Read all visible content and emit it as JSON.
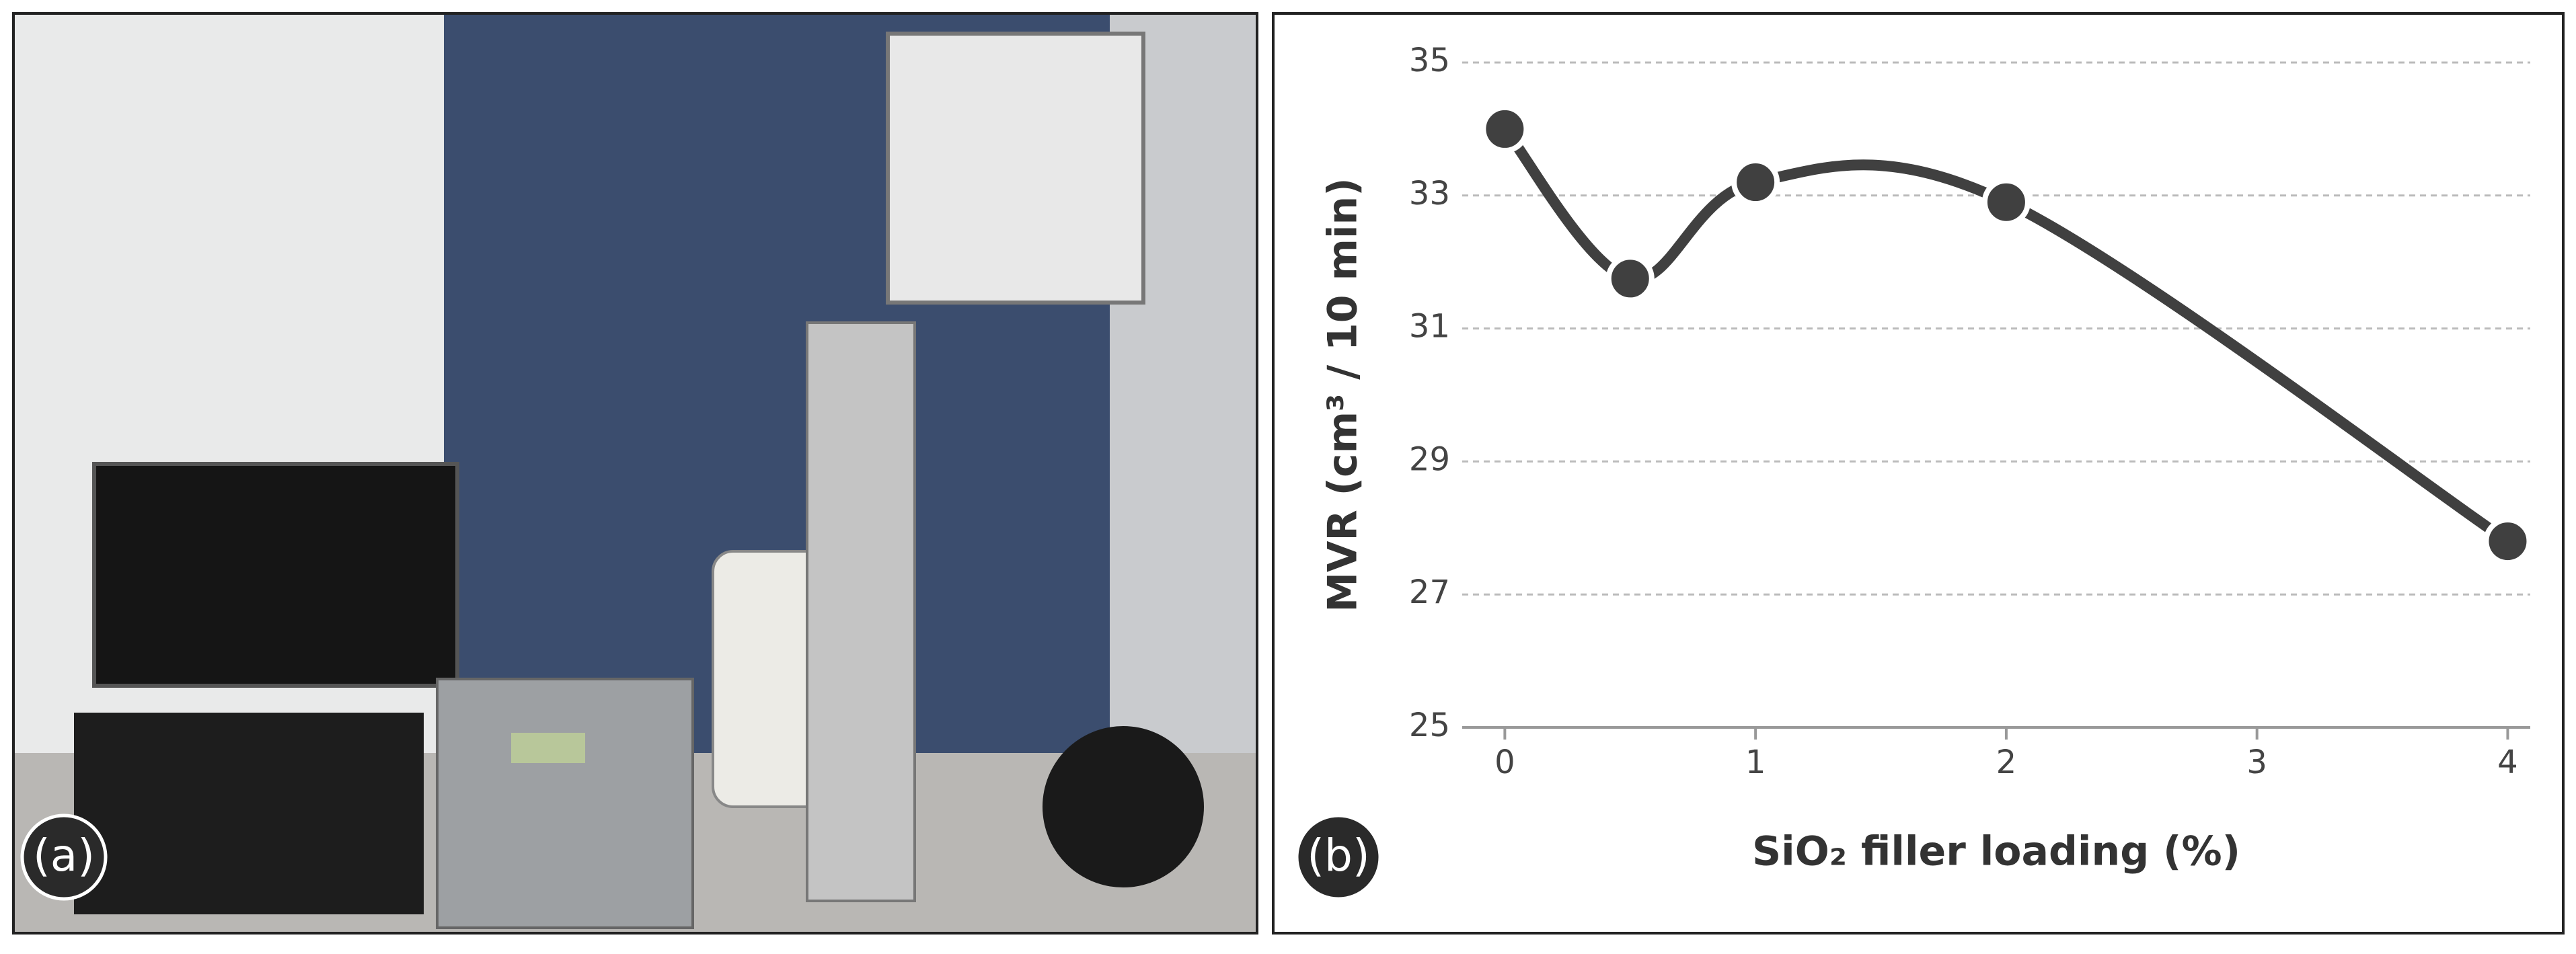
{
  "photo_label": "(a)",
  "chart_data": {
    "type": "line",
    "panel_label": "(b)",
    "xlabel": "SiO₂ filler loading (%)",
    "ylabel": "MVR (cm³ / 10 min)",
    "x": [
      0,
      0.5,
      1,
      2,
      4
    ],
    "series": [
      {
        "color": "#404040",
        "values": [
          34,
          31.75,
          33.2,
          32.9,
          27.8
        ]
      }
    ],
    "xlim": [
      -0.17,
      4.09
    ],
    "xticks": [
      0,
      1,
      2,
      3,
      4
    ],
    "ylim": [
      25,
      35
    ],
    "yticks": [
      25,
      27,
      29,
      31,
      33,
      35
    ],
    "grid": true,
    "smooth": true
  }
}
